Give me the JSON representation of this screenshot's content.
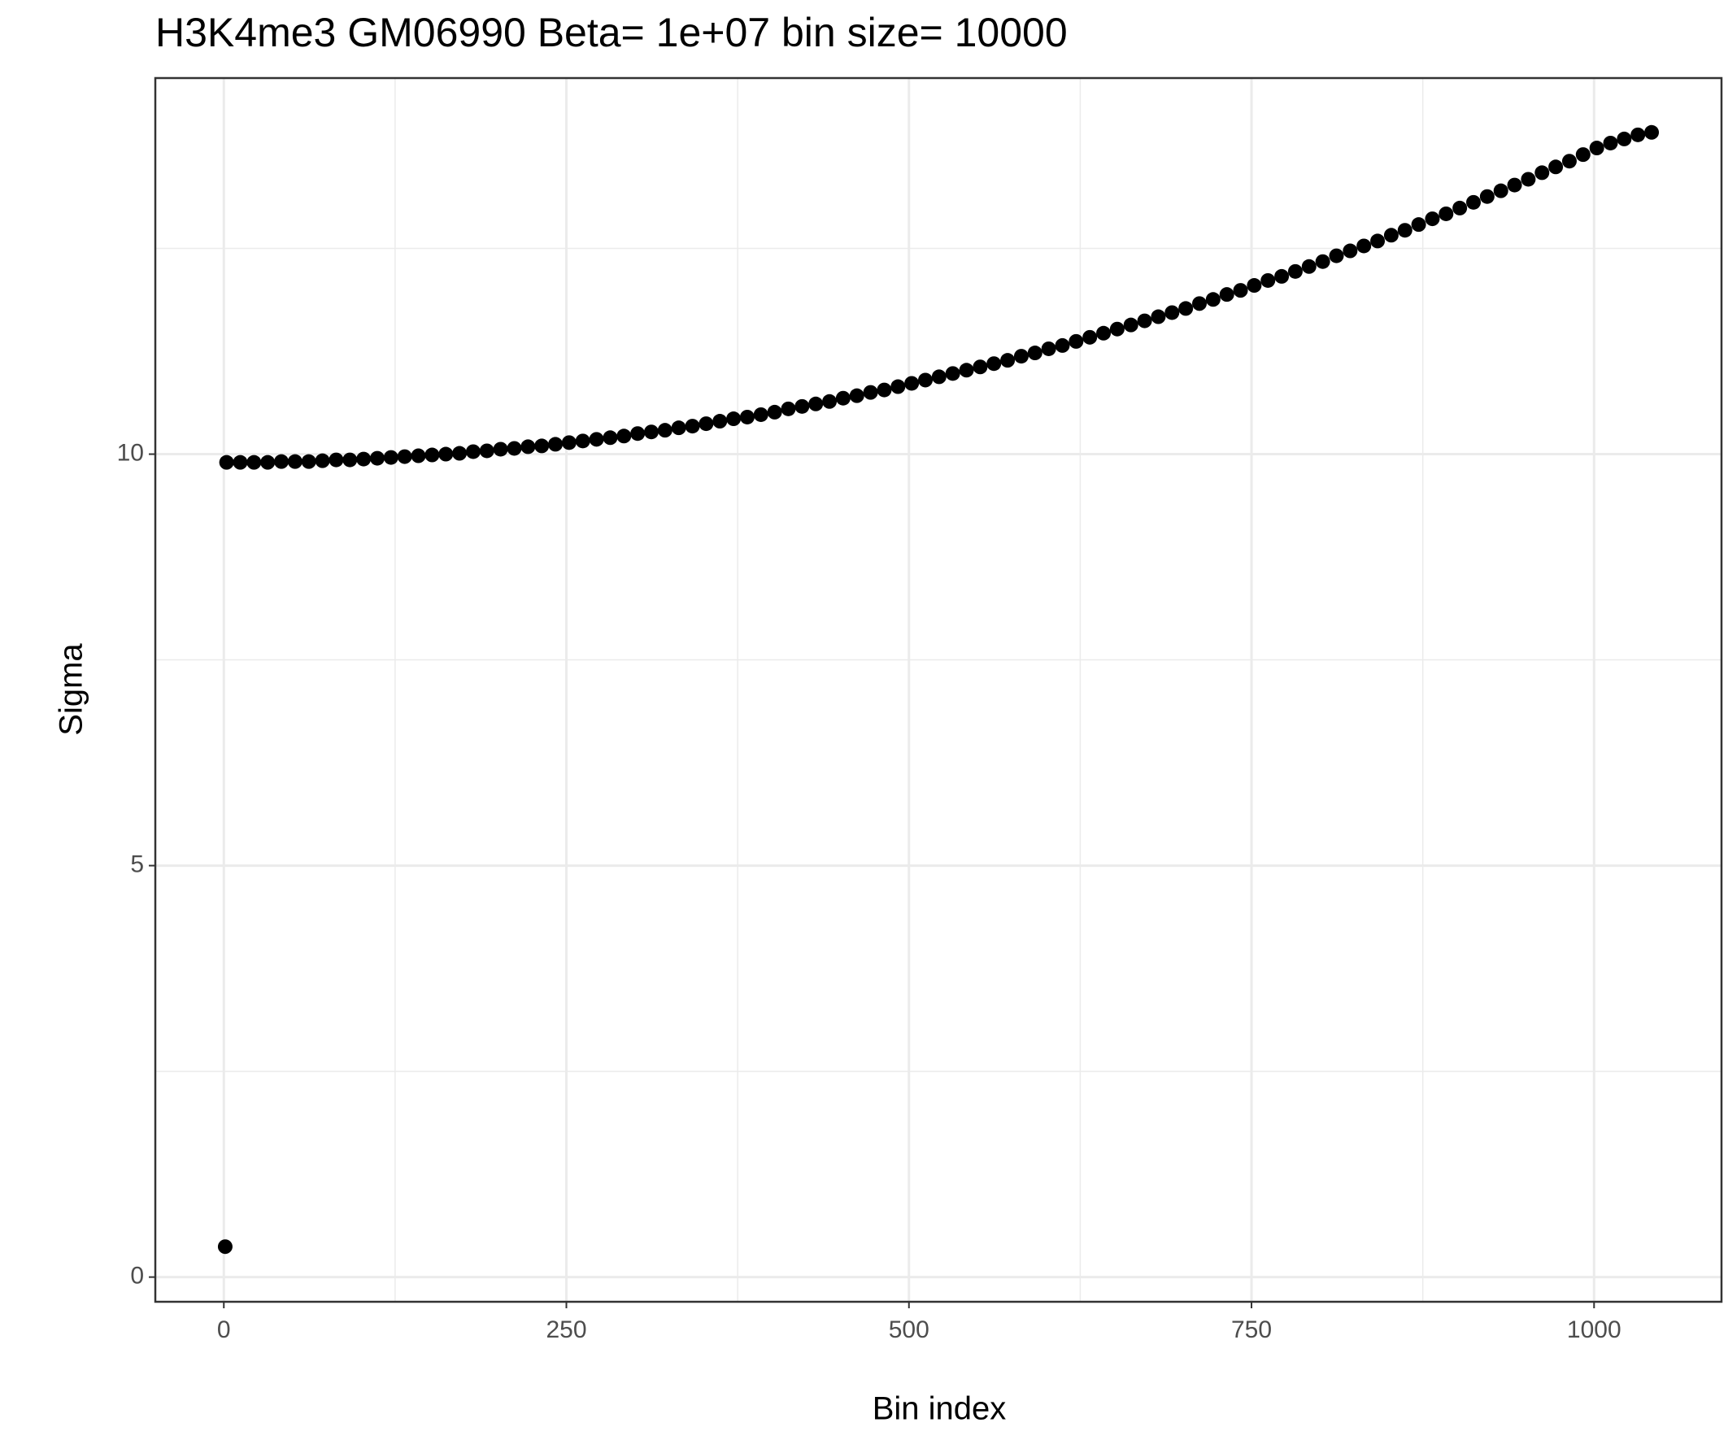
{
  "chart_data": {
    "type": "scatter",
    "title": "H3K4me3 GM06990  Beta=  1e+07  bin size=  10000",
    "x_label": "Bin index",
    "y_label": "Sigma",
    "color": "#000000",
    "grid": true,
    "xlim": [
      -50,
      1093
    ],
    "ylim": [
      -0.3,
      14.57
    ],
    "xticks": [
      0,
      250,
      500,
      750,
      1000
    ],
    "yticks": [
      0,
      5,
      10
    ],
    "x": [
      1,
      2,
      12,
      22,
      32,
      42,
      52,
      62,
      72,
      82,
      92,
      102,
      112,
      122,
      132,
      142,
      152,
      162,
      172,
      182,
      192,
      202,
      212,
      222,
      232,
      242,
      252,
      262,
      272,
      282,
      292,
      302,
      312,
      322,
      332,
      342,
      352,
      362,
      372,
      382,
      392,
      402,
      412,
      422,
      432,
      442,
      452,
      462,
      472,
      482,
      492,
      502,
      512,
      522,
      532,
      542,
      552,
      562,
      572,
      582,
      592,
      602,
      612,
      622,
      632,
      642,
      652,
      662,
      672,
      682,
      692,
      702,
      712,
      722,
      732,
      742,
      752,
      762,
      772,
      782,
      792,
      802,
      812,
      822,
      832,
      842,
      852,
      862,
      872,
      882,
      892,
      902,
      912,
      922,
      932,
      942,
      952,
      962,
      972,
      982,
      992,
      1002,
      1012,
      1022,
      1032,
      1042
    ],
    "values": [
      0.37,
      9.9,
      9.9,
      9.9,
      9.9,
      9.91,
      9.91,
      9.91,
      9.92,
      9.93,
      9.93,
      9.94,
      9.95,
      9.96,
      9.97,
      9.98,
      9.99,
      10.0,
      10.01,
      10.03,
      10.04,
      10.06,
      10.07,
      10.09,
      10.1,
      10.12,
      10.14,
      10.16,
      10.18,
      10.2,
      10.22,
      10.25,
      10.27,
      10.29,
      10.32,
      10.34,
      10.37,
      10.4,
      10.43,
      10.45,
      10.48,
      10.51,
      10.55,
      10.58,
      10.61,
      10.64,
      10.68,
      10.71,
      10.75,
      10.78,
      10.82,
      10.86,
      10.9,
      10.94,
      10.98,
      11.02,
      11.06,
      11.1,
      11.14,
      11.19,
      11.23,
      11.28,
      11.32,
      11.37,
      11.42,
      11.47,
      11.52,
      11.57,
      11.62,
      11.67,
      11.72,
      11.77,
      11.83,
      11.88,
      11.94,
      11.99,
      12.05,
      12.11,
      12.16,
      12.22,
      12.28,
      12.34,
      12.41,
      12.47,
      12.53,
      12.59,
      12.66,
      12.72,
      12.79,
      12.86,
      12.92,
      12.99,
      13.06,
      13.13,
      13.2,
      13.27,
      13.34,
      13.42,
      13.49,
      13.56,
      13.64,
      13.72,
      13.78,
      13.83,
      13.88,
      13.91
    ]
  }
}
